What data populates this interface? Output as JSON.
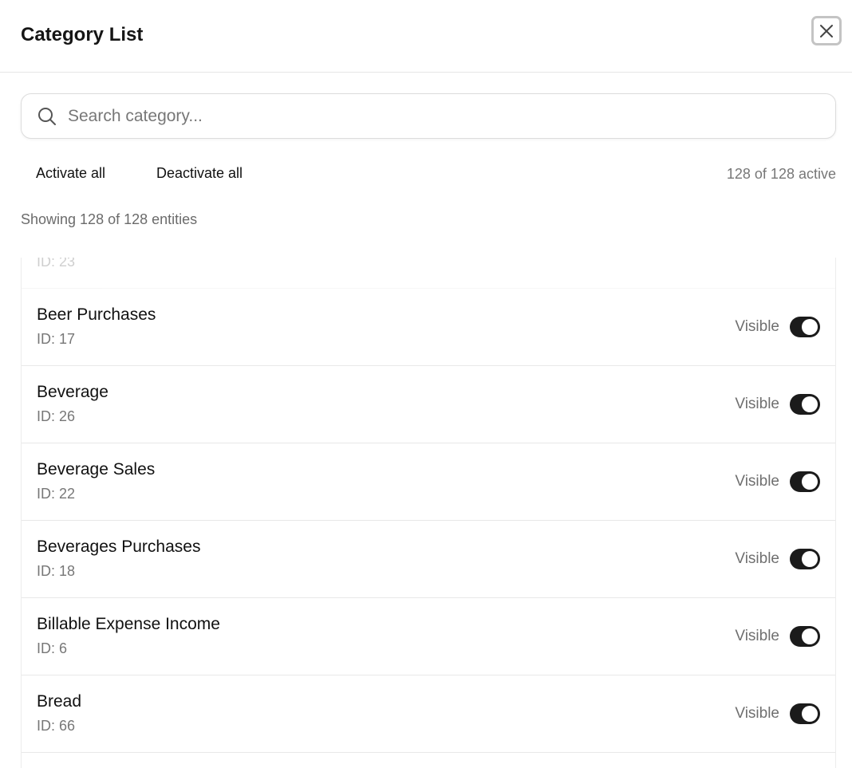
{
  "header": {
    "title": "Category List",
    "close_icon": "close-icon"
  },
  "search": {
    "placeholder": "Search category..."
  },
  "actions": {
    "activate_all": "Activate all",
    "deactivate_all": "Deactivate all",
    "active_count": "128 of 128 active"
  },
  "showing": "Showing 128 of 128 entities",
  "partial_row": {
    "id": "ID: 23"
  },
  "rows": [
    {
      "name": "Beer Purchases",
      "id": "ID: 17",
      "status": "Visible",
      "on": true
    },
    {
      "name": "Beverage",
      "id": "ID: 26",
      "status": "Visible",
      "on": true
    },
    {
      "name": "Beverage Sales",
      "id": "ID: 22",
      "status": "Visible",
      "on": true
    },
    {
      "name": "Beverages Purchases",
      "id": "ID: 18",
      "status": "Visible",
      "on": true
    },
    {
      "name": "Billable Expense Income",
      "id": "ID: 6",
      "status": "Visible",
      "on": true
    },
    {
      "name": "Bread",
      "id": "ID: 66",
      "status": "Visible",
      "on": true
    }
  ]
}
